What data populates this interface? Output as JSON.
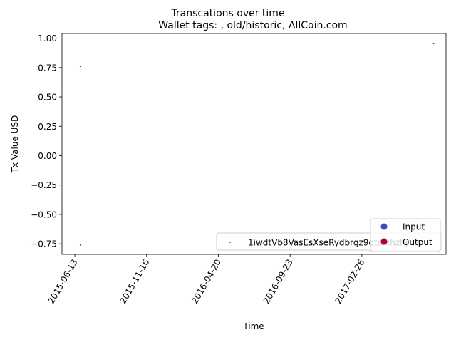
{
  "chart_data": {
    "type": "scatter",
    "suptitle": "Transcations over time",
    "title": "Wallet tags: , old/historic, AllCoin.com",
    "xlabel": "Time",
    "ylabel": "Tx Value USD",
    "x_ticks": [
      "2015-06-13",
      "2015-11-16",
      "2016-04-20",
      "2016-09-23",
      "2017-02-26"
    ],
    "y_ticks": [
      1.0,
      0.75,
      0.5,
      0.25,
      0.0,
      -0.25,
      -0.5,
      -0.75
    ],
    "y_tick_labels": [
      "1.00",
      "0.75",
      "0.50",
      "0.25",
      "0.00",
      "−0.25",
      "−0.50",
      "−0.75"
    ],
    "xlim": [
      "2015-05-16",
      "2017-08-28"
    ],
    "ylim": [
      -0.84,
      1.04
    ],
    "series": [
      {
        "name": "Input",
        "color": "#3b4cc0",
        "points": [
          {
            "x": "2015-06-25",
            "y": -0.76
          }
        ]
      },
      {
        "name": "Output",
        "color": "#b40426",
        "points": [
          {
            "x": "2015-06-25",
            "y": 0.76
          },
          {
            "x": "2017-08-01",
            "y": 0.955
          }
        ]
      }
    ],
    "legend_address": {
      "label": "1iwdtVb8VasEsXseRydbrgz9otjaxhzhj",
      "color": "#1f77b4",
      "location": "lower-right"
    },
    "legend_io": {
      "location": "lower-right",
      "entries": [
        {
          "label": "Input",
          "color": "#3b4cc0"
        },
        {
          "label": "Output",
          "color": "#b40426"
        }
      ]
    }
  }
}
